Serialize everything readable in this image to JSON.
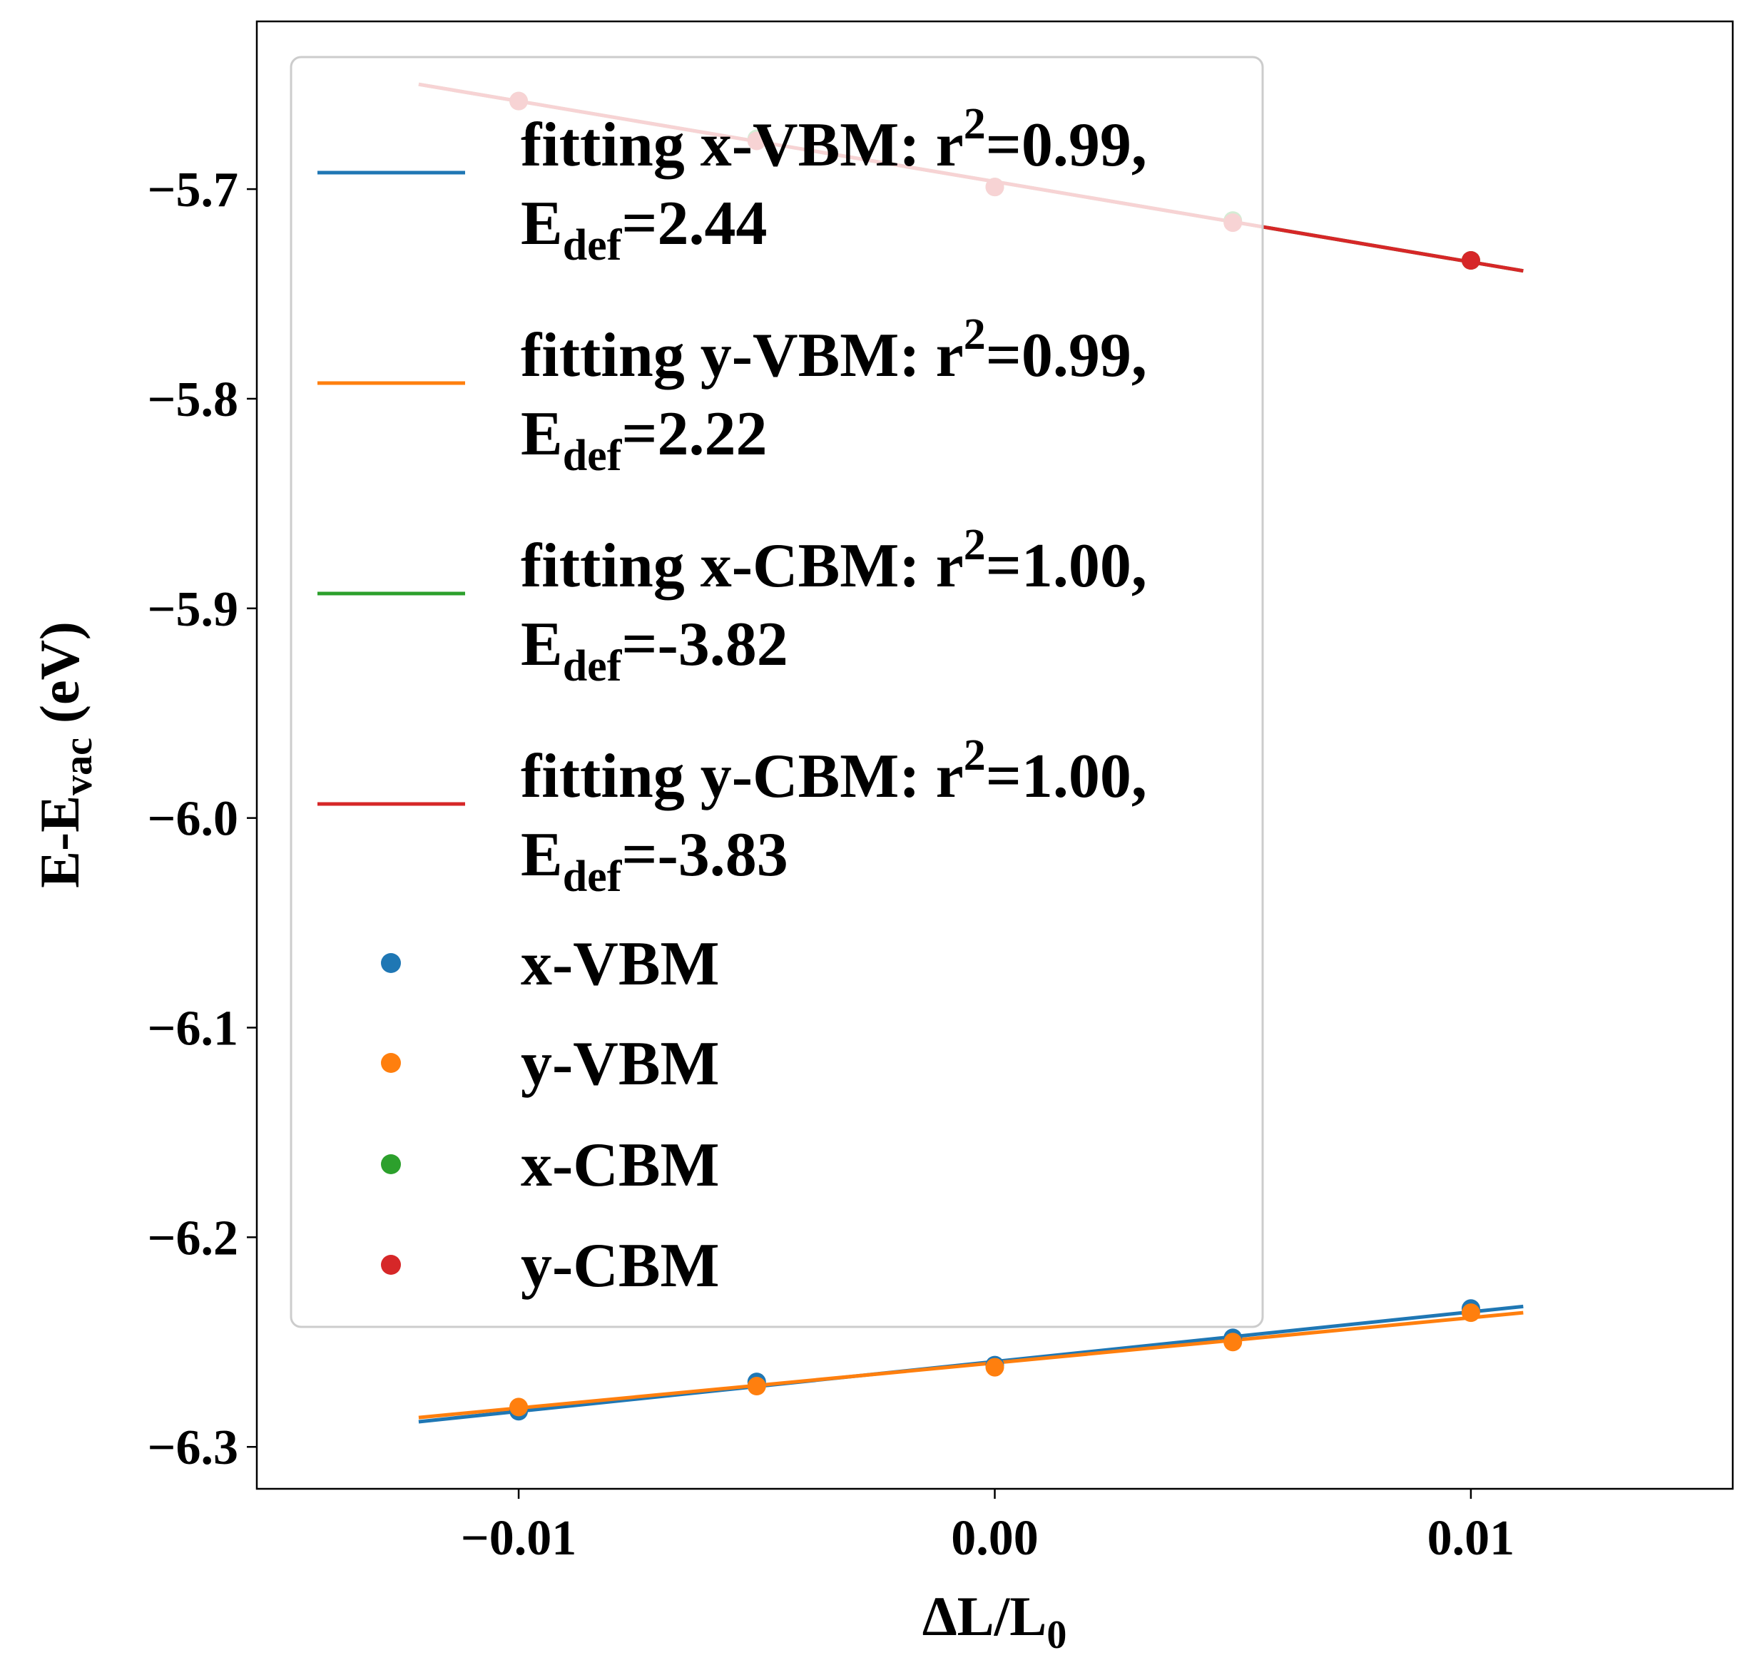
{
  "chart_data": {
    "type": "scatter",
    "xlabel": "ΔL/L",
    "xlabel_sub": "0",
    "ylabel": "E-E",
    "ylabel_sub": "vac",
    "ylabel_unit": "(eV)",
    "xlim": [
      -0.0155,
      0.0155
    ],
    "ylim": [
      -6.32,
      -5.62
    ],
    "x_ticks": [
      -0.01,
      0.0,
      0.01
    ],
    "x_tick_labels": [
      "−0.01",
      "0.00",
      "0.01"
    ],
    "y_ticks": [
      -5.7,
      -5.8,
      -5.9,
      -6.0,
      -6.1,
      -6.2,
      -6.3
    ],
    "y_tick_labels": [
      "−5.7",
      "−5.8",
      "−5.9",
      "−6.0",
      "−6.1",
      "−6.2",
      "−6.3"
    ],
    "grid": false,
    "legend_position": "top-left",
    "x": [
      -0.01,
      -0.005,
      0.0,
      0.005,
      0.01
    ],
    "series": [
      {
        "name": "x-VBM",
        "color": "#1f77b4",
        "values": [
          -6.283,
          -6.269,
          -6.261,
          -6.248,
          -6.234
        ]
      },
      {
        "name": "y-VBM",
        "color": "#ff7f0e",
        "values": [
          -6.281,
          -6.271,
          -6.262,
          -6.25,
          -6.236
        ]
      },
      {
        "name": "x-CBM",
        "color": "#2ca02c",
        "values": [
          -5.658,
          -5.676,
          -5.699,
          -5.715,
          -5.734
        ]
      },
      {
        "name": "y-CBM",
        "color": "#d62728",
        "values": [
          -5.658,
          -5.677,
          -5.699,
          -5.716,
          -5.734
        ]
      }
    ],
    "fits": [
      {
        "name": "x-VBM",
        "color": "#1f77b4",
        "r2": "0.99",
        "edef": "2.44",
        "x_range": [
          -0.0121,
          0.0111
        ],
        "y_range": [
          -6.288,
          -6.233
        ]
      },
      {
        "name": "y-VBM",
        "color": "#ff7f0e",
        "r2": "0.99",
        "edef": "2.22",
        "x_range": [
          -0.0121,
          0.0111
        ],
        "y_range": [
          -6.286,
          -6.236
        ]
      },
      {
        "name": "x-CBM",
        "color": "#2ca02c",
        "r2": "1.00",
        "edef": "-3.82",
        "x_range": [
          -0.0121,
          0.0111
        ],
        "y_range": [
          -5.65,
          -5.739
        ]
      },
      {
        "name": "y-CBM",
        "color": "#d62728",
        "r2": "1.00",
        "edef": "-3.83",
        "x_range": [
          -0.0121,
          0.0111
        ],
        "y_range": [
          -5.65,
          -5.739
        ]
      }
    ]
  },
  "legend": {
    "fit_entries": [
      {
        "line1": "fitting x-VBM: r",
        "sup": "2",
        "line1_tail": "=0.99,",
        "line2": "E",
        "sub": "def",
        "line2_tail": "=2.44",
        "color": "#1f77b4"
      },
      {
        "line1": "fitting y-VBM: r",
        "sup": "2",
        "line1_tail": "=0.99,",
        "line2": "E",
        "sub": "def",
        "line2_tail": "=2.22",
        "color": "#ff7f0e"
      },
      {
        "line1": "fitting x-CBM: r",
        "sup": "2",
        "line1_tail": "=1.00,",
        "line2": "E",
        "sub": "def",
        "line2_tail": "=-3.82",
        "color": "#2ca02c"
      },
      {
        "line1": "fitting y-CBM: r",
        "sup": "2",
        "line1_tail": "=1.00,",
        "line2": "E",
        "sub": "def",
        "line2_tail": "=-3.83",
        "color": "#d62728"
      }
    ],
    "scatter_entries": [
      {
        "label": "x-VBM",
        "color": "#1f77b4"
      },
      {
        "label": "y-VBM",
        "color": "#ff7f0e"
      },
      {
        "label": "x-CBM",
        "color": "#2ca02c"
      },
      {
        "label": "y-CBM",
        "color": "#d62728"
      }
    ]
  }
}
